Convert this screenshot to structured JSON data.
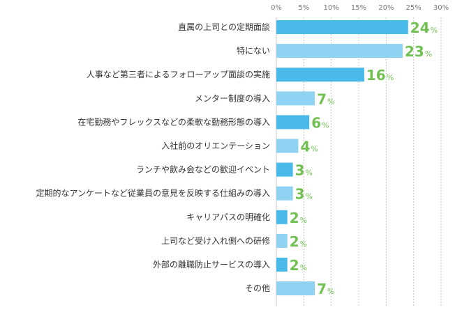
{
  "chart_data": {
    "type": "bar",
    "orientation": "horizontal",
    "title": "",
    "xlabel": "",
    "ylabel": "",
    "xlim": [
      0,
      30
    ],
    "ticks": [
      "0%",
      "5%",
      "10%",
      "15%",
      "20%",
      "25%",
      "30%"
    ],
    "grid": true,
    "value_suffix": "%",
    "categories": [
      "直属の上司との定期面談",
      "特にない",
      "人事など第三者によるフォローアップ面談の実施",
      "メンター制度の導入",
      "在宅勤務やフレックスなどの柔軟な勤務形態の導入",
      "入社前のオリエンテーション",
      "ランチや飲み会などの歓迎イベント",
      "定期的なアンケートなど従業員の意見を反映する仕組みの導入",
      "キャリアパスの明確化",
      "上司など受け入れ側への研修",
      "外部の離職防止サービスの導入",
      "その他"
    ],
    "values": [
      24,
      23,
      16,
      7,
      6,
      4,
      3,
      3,
      2,
      2,
      2,
      7
    ],
    "colors": {
      "bar_dark": "#49b9ea",
      "bar_light": "#8fd2f1",
      "value_label": "#72c054",
      "grid": "#c8c8c8"
    }
  }
}
